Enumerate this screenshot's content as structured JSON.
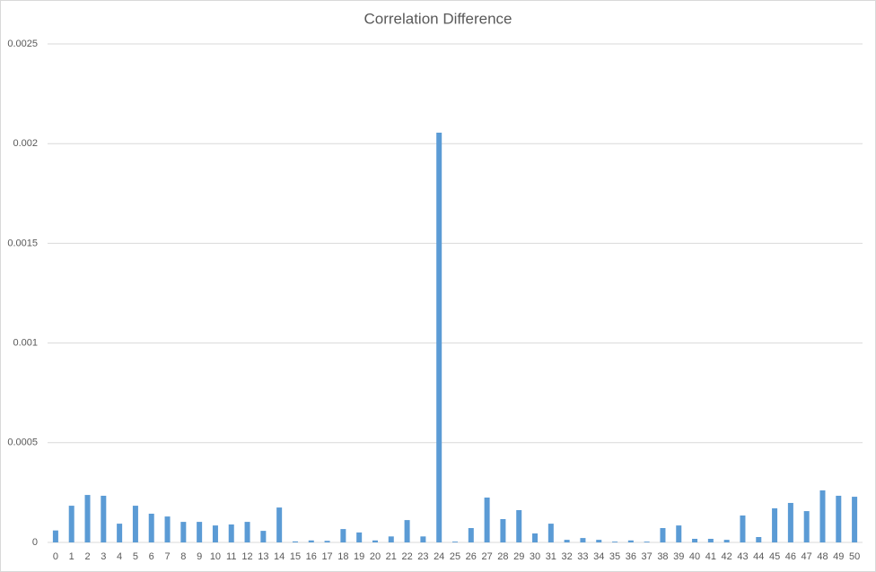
{
  "chart_data": {
    "type": "bar",
    "title": "Correlation Difference",
    "categories": [
      "0",
      "1",
      "2",
      "3",
      "4",
      "5",
      "6",
      "7",
      "8",
      "9",
      "10",
      "11",
      "12",
      "13",
      "14",
      "15",
      "16",
      "17",
      "18",
      "19",
      "20",
      "21",
      "22",
      "23",
      "24",
      "25",
      "26",
      "27",
      "28",
      "29",
      "30",
      "31",
      "32",
      "33",
      "34",
      "35",
      "36",
      "37",
      "38",
      "39",
      "40",
      "41",
      "42",
      "43",
      "44",
      "45",
      "46",
      "47",
      "48",
      "49",
      "50"
    ],
    "values": [
      6e-05,
      0.000184,
      0.000238,
      0.000234,
      9.4e-05,
      0.000184,
      0.000144,
      0.00013,
      0.000103,
      0.000103,
      8.5e-05,
      9e-05,
      0.000103,
      5.8e-05,
      0.000175,
      5e-06,
      1e-05,
      8e-06,
      6.7e-05,
      5e-05,
      1e-05,
      3e-05,
      0.000112,
      3e-05,
      0.002055,
      4e-06,
      7.2e-05,
      0.000225,
      0.000117,
      0.000162,
      4.5e-05,
      9.4e-05,
      1.3e-05,
      2.2e-05,
      1.3e-05,
      4e-06,
      1e-05,
      4e-06,
      7.2e-05,
      8.5e-05,
      1.8e-05,
      1.8e-05,
      1.3e-05,
      0.000135,
      2.7e-05,
      0.000171,
      0.000198,
      0.000157,
      0.000261,
      0.000234,
      0.000229
    ],
    "color": "#5b9bd5",
    "ylim": [
      0,
      0.0025
    ],
    "yticks": [
      0,
      0.0005,
      0.001,
      0.0015,
      0.002,
      0.0025
    ],
    "grid": true
  }
}
